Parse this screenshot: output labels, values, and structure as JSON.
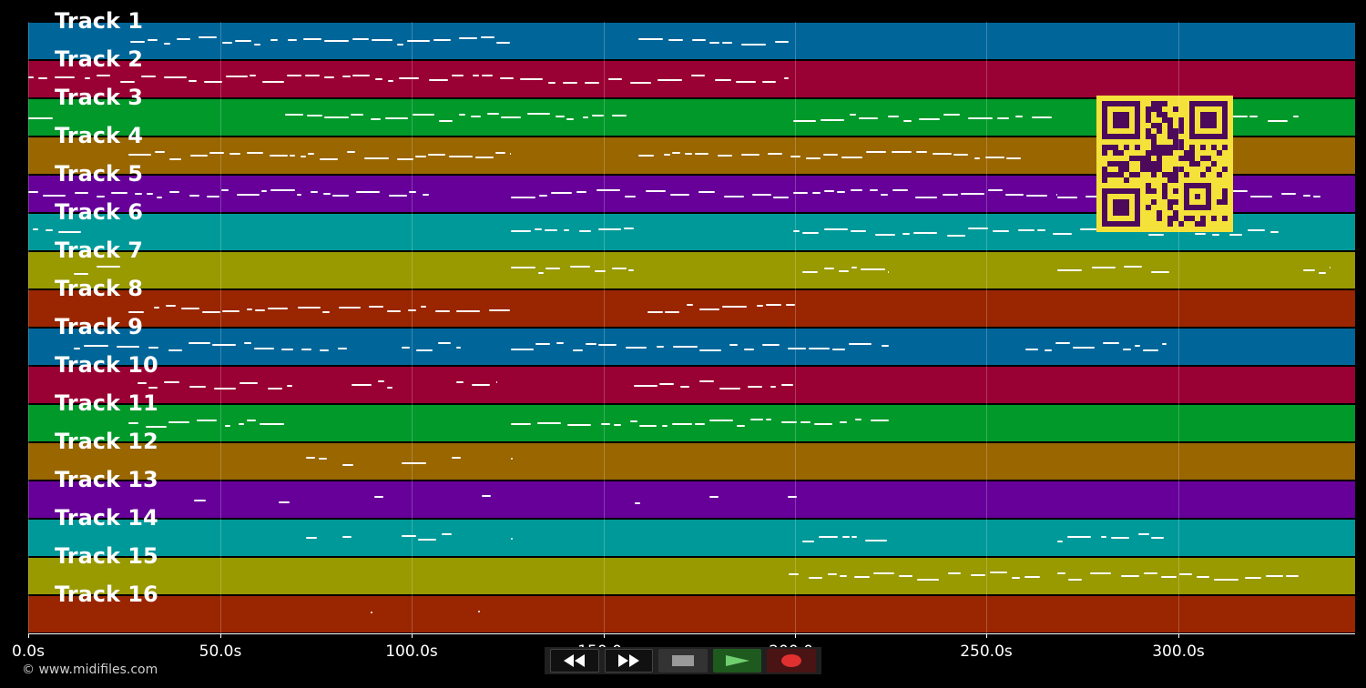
{
  "tracks": [
    {
      "label": "Track 1",
      "color": "#006699"
    },
    {
      "label": "Track 2",
      "color": "#990033"
    },
    {
      "label": "Track 3",
      "color": "#00992a"
    },
    {
      "label": "Track 4",
      "color": "#996600"
    },
    {
      "label": "Track 5",
      "color": "#660099"
    },
    {
      "label": "Track 6",
      "color": "#009999"
    },
    {
      "label": "Track 7",
      "color": "#999900"
    },
    {
      "label": "Track 8",
      "color": "#992600"
    },
    {
      "label": "Track 9",
      "color": "#006699"
    },
    {
      "label": "Track 10",
      "color": "#990033"
    },
    {
      "label": "Track 11",
      "color": "#00992a"
    },
    {
      "label": "Track 12",
      "color": "#996600"
    },
    {
      "label": "Track 13",
      "color": "#660099"
    },
    {
      "label": "Track 14",
      "color": "#009999"
    },
    {
      "label": "Track 15",
      "color": "#999900"
    },
    {
      "label": "Track 16",
      "color": "#992600"
    }
  ],
  "timeline": {
    "ticks": [
      "0.0s",
      "50.0s",
      "100.0s",
      "150.0s",
      "200.0s",
      "250.0s",
      "300.0s"
    ]
  },
  "transport": {
    "rewind_icon": "rewind-icon",
    "fast_forward_icon": "fast-forward-icon",
    "stop_icon": "stop-icon",
    "play_icon": "play-icon",
    "record_icon": "record-icon"
  },
  "footer": {
    "copyright": "© www.midifiles.com"
  },
  "qr_code": {
    "color": "#f4e23a",
    "dark": "#4d0a5a"
  }
}
